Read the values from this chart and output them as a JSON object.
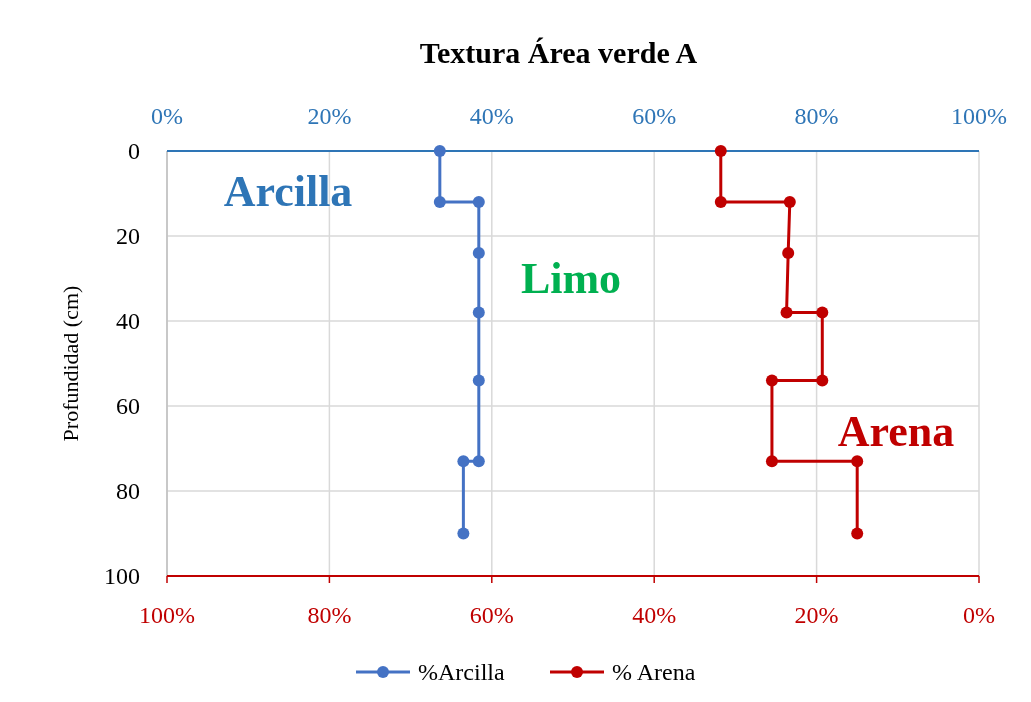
{
  "chart_data": {
    "type": "line",
    "title": "Textura Área verde A",
    "ylabel": "Profundidad (cm)",
    "xlim": [
      100,
      0
    ],
    "xticks": [
      {
        "value": 100,
        "label": "100%"
      },
      {
        "value": 80,
        "label": "80%"
      },
      {
        "value": 60,
        "label": "60%"
      },
      {
        "value": 40,
        "label": "40%"
      },
      {
        "value": 20,
        "label": "20%"
      },
      {
        "value": 0,
        "label": "0%"
      }
    ],
    "x2lim": [
      0,
      100
    ],
    "x2ticks": [
      {
        "value": 0,
        "label": "0%"
      },
      {
        "value": 20,
        "label": "20%"
      },
      {
        "value": 40,
        "label": "40%"
      },
      {
        "value": 60,
        "label": "60%"
      },
      {
        "value": 80,
        "label": "80%"
      },
      {
        "value": 100,
        "label": "100%"
      }
    ],
    "ylim": [
      100,
      0
    ],
    "yticks": [
      0,
      20,
      40,
      60,
      80,
      100
    ],
    "series": [
      {
        "name": "%Arcilla",
        "color": "#4472c4",
        "axis": "x2",
        "x": [
          33.6,
          33.6,
          38.4,
          38.4,
          38.4,
          38.4,
          38.4,
          36.5,
          36.5
        ],
        "values": [
          0,
          12,
          12,
          24,
          38,
          54,
          73,
          73,
          90
        ]
      },
      {
        "name": "% Arena",
        "color": "#c00000",
        "x": [
          31.8,
          31.8,
          23.3,
          23.5,
          23.7,
          19.3,
          19.3,
          25.5,
          25.5,
          15.0,
          15.0
        ],
        "values": [
          0,
          12,
          12,
          24,
          38,
          38,
          54,
          54,
          73,
          73,
          90
        ]
      }
    ],
    "annotations": [
      "Arcilla",
      "Limo",
      "Arena"
    ],
    "grid": true,
    "legend": "bottom",
    "marker": "circle",
    "line_style": "solid"
  }
}
